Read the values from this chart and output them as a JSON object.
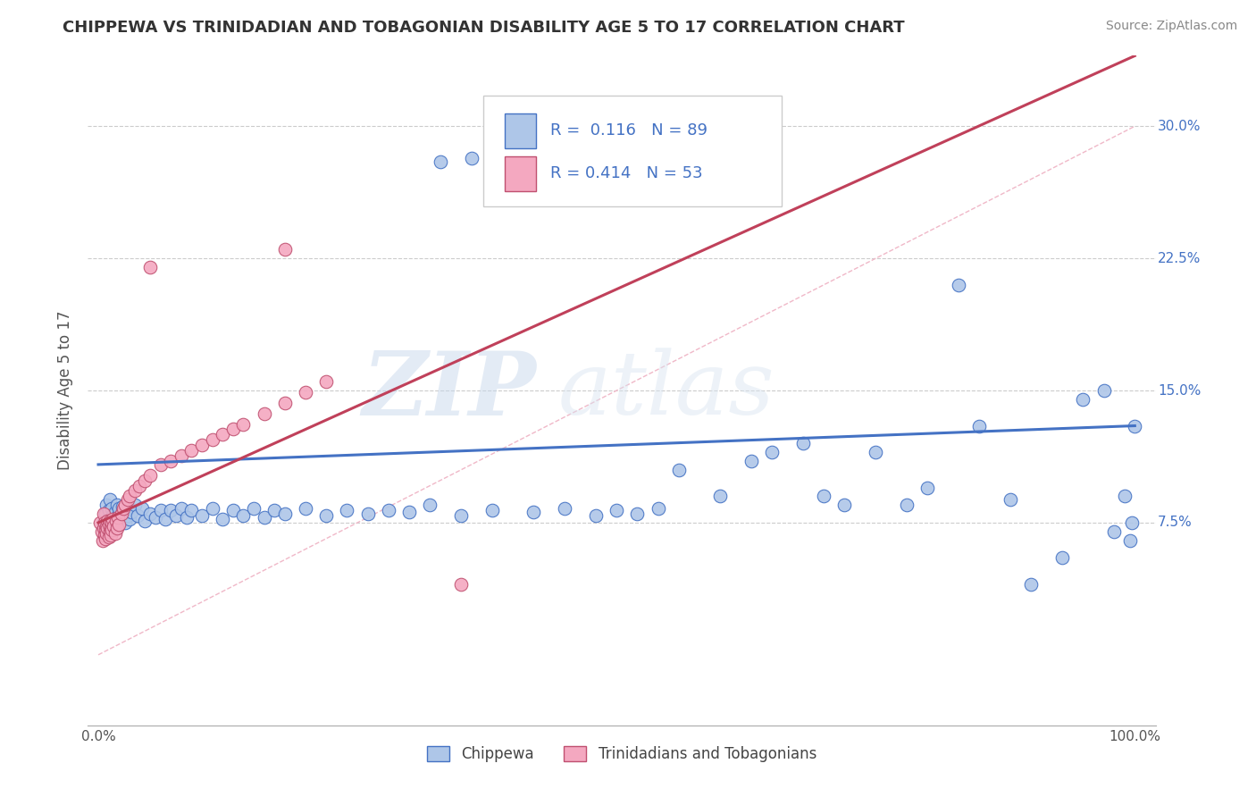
{
  "title": "CHIPPEWA VS TRINIDADIAN AND TOBAGONIAN DISABILITY AGE 5 TO 17 CORRELATION CHART",
  "source": "Source: ZipAtlas.com",
  "ylabel": "Disability Age 5 to 17",
  "legend1_R": "0.116",
  "legend1_N": "89",
  "legend2_R": "0.414",
  "legend2_N": "53",
  "chippewa_color": "#aec6e8",
  "trinidadian_color": "#f4a8c0",
  "chippewa_line_color": "#4472c4",
  "trinidadian_line_color": "#c0405a",
  "diagonal_color": "#f0b8c8",
  "watermark_zip": "ZIP",
  "watermark_atlas": "atlas",
  "background_color": "#ffffff",
  "xlim_min": 0.0,
  "xlim_max": 1.0,
  "ylim_min": -0.04,
  "ylim_max": 0.34,
  "yticks": [
    0.075,
    0.15,
    0.225,
    0.3
  ],
  "ytick_labels": [
    "7.5%",
    "15.0%",
    "22.5%",
    "30.0%"
  ],
  "xtick_vals": [
    0.0,
    1.0
  ],
  "xtick_labels": [
    "0.0%",
    "100.0%"
  ],
  "chippewa_x": [
    0.005,
    0.007,
    0.008,
    0.009,
    0.01,
    0.01,
    0.011,
    0.012,
    0.012,
    0.013,
    0.014,
    0.015,
    0.016,
    0.017,
    0.018,
    0.018,
    0.019,
    0.02,
    0.021,
    0.022,
    0.023,
    0.024,
    0.025,
    0.026,
    0.028,
    0.029,
    0.03,
    0.032,
    0.035,
    0.038,
    0.042,
    0.045,
    0.05,
    0.055,
    0.06,
    0.065,
    0.07,
    0.075,
    0.08,
    0.085,
    0.09,
    0.1,
    0.11,
    0.12,
    0.13,
    0.14,
    0.15,
    0.16,
    0.17,
    0.18,
    0.2,
    0.22,
    0.24,
    0.26,
    0.28,
    0.3,
    0.32,
    0.35,
    0.38,
    0.42,
    0.45,
    0.48,
    0.5,
    0.52,
    0.54,
    0.56,
    0.6,
    0.63,
    0.65,
    0.68,
    0.7,
    0.72,
    0.75,
    0.78,
    0.8,
    0.83,
    0.85,
    0.88,
    0.9,
    0.93,
    0.95,
    0.97,
    0.98,
    0.99,
    0.995,
    0.997,
    1.0,
    0.33,
    0.36
  ],
  "chippewa_y": [
    0.075,
    0.08,
    0.085,
    0.07,
    0.078,
    0.082,
    0.088,
    0.072,
    0.076,
    0.083,
    0.079,
    0.074,
    0.081,
    0.077,
    0.085,
    0.073,
    0.079,
    0.083,
    0.076,
    0.08,
    0.084,
    0.078,
    0.082,
    0.075,
    0.079,
    0.083,
    0.077,
    0.081,
    0.085,
    0.079,
    0.083,
    0.076,
    0.08,
    0.078,
    0.082,
    0.077,
    0.082,
    0.079,
    0.083,
    0.078,
    0.082,
    0.079,
    0.083,
    0.077,
    0.082,
    0.079,
    0.083,
    0.078,
    0.082,
    0.08,
    0.083,
    0.079,
    0.082,
    0.08,
    0.082,
    0.081,
    0.085,
    0.079,
    0.082,
    0.081,
    0.083,
    0.079,
    0.082,
    0.08,
    0.083,
    0.105,
    0.09,
    0.11,
    0.115,
    0.12,
    0.09,
    0.085,
    0.115,
    0.085,
    0.095,
    0.21,
    0.13,
    0.088,
    0.04,
    0.055,
    0.145,
    0.15,
    0.07,
    0.09,
    0.065,
    0.075,
    0.13,
    0.28,
    0.282
  ],
  "trinidadian_x": [
    0.002,
    0.003,
    0.004,
    0.005,
    0.005,
    0.006,
    0.006,
    0.007,
    0.007,
    0.008,
    0.008,
    0.009,
    0.009,
    0.01,
    0.01,
    0.011,
    0.011,
    0.012,
    0.012,
    0.013,
    0.013,
    0.014,
    0.015,
    0.016,
    0.017,
    0.018,
    0.019,
    0.02,
    0.022,
    0.024,
    0.026,
    0.028,
    0.03,
    0.035,
    0.04,
    0.045,
    0.05,
    0.06,
    0.07,
    0.08,
    0.09,
    0.1,
    0.11,
    0.12,
    0.13,
    0.14,
    0.16,
    0.18,
    0.2,
    0.22,
    0.05,
    0.18,
    0.35
  ],
  "trinidadian_y": [
    0.075,
    0.07,
    0.065,
    0.08,
    0.072,
    0.068,
    0.075,
    0.071,
    0.066,
    0.073,
    0.069,
    0.076,
    0.072,
    0.067,
    0.074,
    0.07,
    0.076,
    0.072,
    0.068,
    0.075,
    0.071,
    0.077,
    0.073,
    0.069,
    0.076,
    0.072,
    0.078,
    0.074,
    0.08,
    0.083,
    0.085,
    0.088,
    0.09,
    0.093,
    0.096,
    0.099,
    0.102,
    0.108,
    0.11,
    0.113,
    0.116,
    0.119,
    0.122,
    0.125,
    0.128,
    0.131,
    0.137,
    0.143,
    0.149,
    0.155,
    0.22,
    0.23,
    0.04
  ]
}
